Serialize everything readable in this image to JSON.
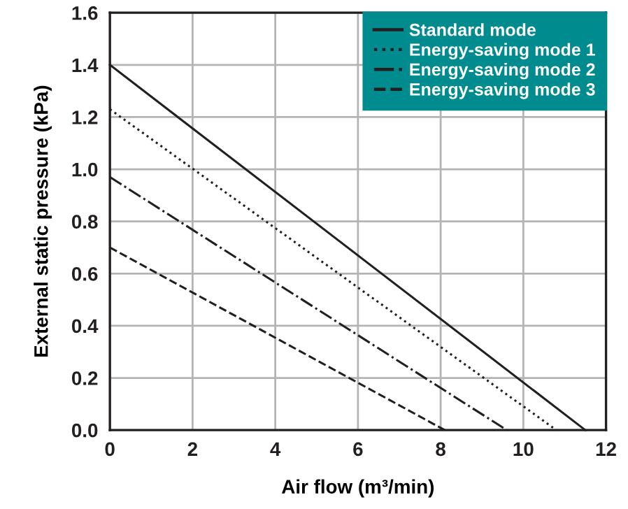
{
  "chart_data": {
    "type": "line",
    "xlabel": "Air flow (m³/min)",
    "ylabel": "External static pressure (kPa)",
    "xlim": [
      0,
      12
    ],
    "xticks": [
      0,
      2,
      4,
      6,
      8,
      10,
      12
    ],
    "ylim": [
      0,
      1.6
    ],
    "yticks": [
      {
        "value": 0,
        "label": "0.0"
      },
      0.2,
      0.4,
      0.6,
      0.8,
      {
        "value": 1,
        "label": "1.0"
      },
      1.2,
      1.4,
      1.6
    ],
    "grid": true,
    "legend": "top right",
    "marker": "none",
    "series": [
      {
        "name": "Standard mode",
        "color": "#231f20",
        "line_style": "solid",
        "x": [
          0,
          11.5
        ],
        "values": [
          1.4,
          0
        ]
      },
      {
        "name": "Energy-saving mode 1",
        "color": "#231f20",
        "line_style": "dotted",
        "x": [
          0,
          10.8
        ],
        "values": [
          1.23,
          0
        ]
      },
      {
        "name": "Energy-saving mode 2",
        "color": "#231f20",
        "line_style": "dashdot",
        "x": [
          0,
          9.6
        ],
        "values": [
          0.97,
          0
        ]
      },
      {
        "name": "Energy-saving mode 3",
        "color": "#231f20",
        "line_style": "dashed",
        "x": [
          0,
          8.1
        ],
        "values": [
          0.7,
          0
        ]
      }
    ]
  }
}
